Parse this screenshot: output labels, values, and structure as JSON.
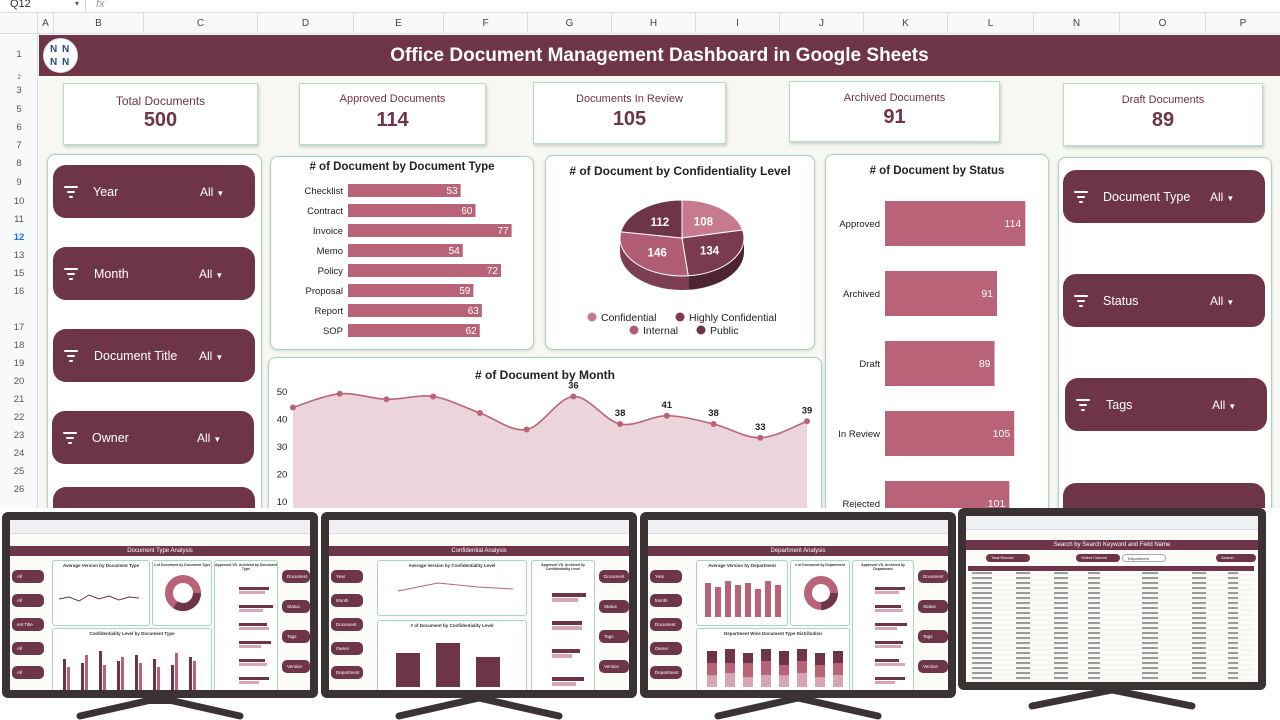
{
  "sheet": {
    "cell_ref": "Q12",
    "fx_label": "fx",
    "columns": [
      "A",
      "B",
      "C",
      "D",
      "E",
      "F",
      "G",
      "H",
      "I",
      "J",
      "K",
      "L",
      "N",
      "O",
      "P"
    ],
    "rows": [
      "1",
      "2",
      "3",
      "5",
      "6",
      "7",
      "8",
      "9",
      "10",
      "11",
      "12",
      "13",
      "15",
      "16",
      "17",
      "18",
      "19",
      "20",
      "21",
      "22",
      "23",
      "24",
      "25",
      "26"
    ],
    "selected_row": "12"
  },
  "dashboard": {
    "title": "Office Document Management Dashboard in Google Sheets",
    "logo_text": "N",
    "colors": {
      "primary": "#6e3447",
      "bar": "#b86378",
      "area_fill": "#ecd4db",
      "background": "#f6f8f1",
      "border": "#a9d3c2"
    }
  },
  "kpis": [
    {
      "label": "Total Documents",
      "value": "500"
    },
    {
      "label": "Approved Documents",
      "value": "114"
    },
    {
      "label": "Documents In Review",
      "value": "105"
    },
    {
      "label": "Archived Documents",
      "value": "91"
    },
    {
      "label": "Draft Documents",
      "value": "89"
    }
  ],
  "slicers_left": [
    {
      "name": "Year",
      "value": "All"
    },
    {
      "name": "Month",
      "value": "All"
    },
    {
      "name": "Document Title",
      "value": "All"
    },
    {
      "name": "Owner",
      "value": "All"
    }
  ],
  "slicers_right": [
    {
      "name": "Document Type",
      "value": "All"
    },
    {
      "name": "Status",
      "value": "All"
    },
    {
      "name": "Tags",
      "value": "All"
    }
  ],
  "chart_data": [
    {
      "type": "bar",
      "orientation": "horizontal",
      "title": "# of Document by Document Type",
      "categories": [
        "Checklist",
        "Contract",
        "Invoice",
        "Memo",
        "Policy",
        "Proposal",
        "Report",
        "SOP"
      ],
      "values": [
        53,
        60,
        77,
        54,
        72,
        59,
        63,
        62
      ],
      "xlim": [
        0,
        80
      ]
    },
    {
      "type": "pie",
      "title": "# of Document by Confidentiality Level",
      "labels": [
        "Confidential",
        "Highly Confidential",
        "Internal",
        "Public"
      ],
      "values": [
        108,
        134,
        146,
        112
      ],
      "legend": "bottom",
      "colors": [
        "#c67a8f",
        "#7a3a4f",
        "#b05c74",
        "#6e3447"
      ]
    },
    {
      "type": "bar",
      "orientation": "horizontal",
      "title": "# of Document by Status",
      "categories": [
        "Approved",
        "Archived",
        "Draft",
        "In Review",
        "Rejected"
      ],
      "values": [
        114,
        91,
        89,
        105,
        101
      ],
      "xlim": [
        0,
        130
      ]
    },
    {
      "type": "area",
      "title": "# of Document by Month",
      "x": [
        "1",
        "2",
        "3",
        "4",
        "5",
        "6",
        "7",
        "8",
        "9",
        "10",
        "11",
        "12"
      ],
      "values": [
        44,
        49,
        47,
        48,
        42,
        36,
        48,
        38,
        41,
        38,
        33,
        39
      ],
      "labeled_values": [
        36,
        38,
        41,
        38,
        33,
        39
      ],
      "yticks": [
        "50",
        "40",
        "30",
        "20",
        "10"
      ],
      "ylim": [
        10,
        50
      ]
    }
  ],
  "monitors": [
    {
      "title": "Document Type Analysis",
      "slicers": [
        "All",
        "All",
        "ent Title",
        "All",
        "All"
      ],
      "right_slicers": [
        "Document",
        "Status",
        "Tags",
        "Version"
      ],
      "charts": [
        "Average Version by Document Type",
        "# of Document by Document Type",
        "Approved VS. Archived by Document Type",
        "Confidentiality Level by Document Type"
      ]
    },
    {
      "title": "Confidential Analysis",
      "slicers": [
        "Year",
        "Month",
        "Document Title",
        "Owner",
        "Department"
      ],
      "right_slicers": [
        "Document Type",
        "Status",
        "Tags",
        "Version"
      ],
      "charts": [
        "Average Version by Confidentiality Level",
        "Approved VS. Archived by Confidentiality Level",
        "# of Document by Confidentiality Level"
      ]
    },
    {
      "title": "Department Analysis",
      "slicers": [
        "Year",
        "Month",
        "Document Title",
        "Owner",
        "Department"
      ],
      "right_slicers": [
        "Document Type",
        "Status",
        "Tags",
        "Version"
      ],
      "charts": [
        "Average Version by Department",
        "# of Document by Department",
        "Approved VS. Archived by Department",
        "Department Wise Document Type Distribution"
      ]
    },
    {
      "title": "Search by Search Keyword and Field Name",
      "slicers": [
        "Total Record",
        "Select Column",
        "Department",
        "Search"
      ],
      "right_slicers": [],
      "charts": []
    }
  ]
}
